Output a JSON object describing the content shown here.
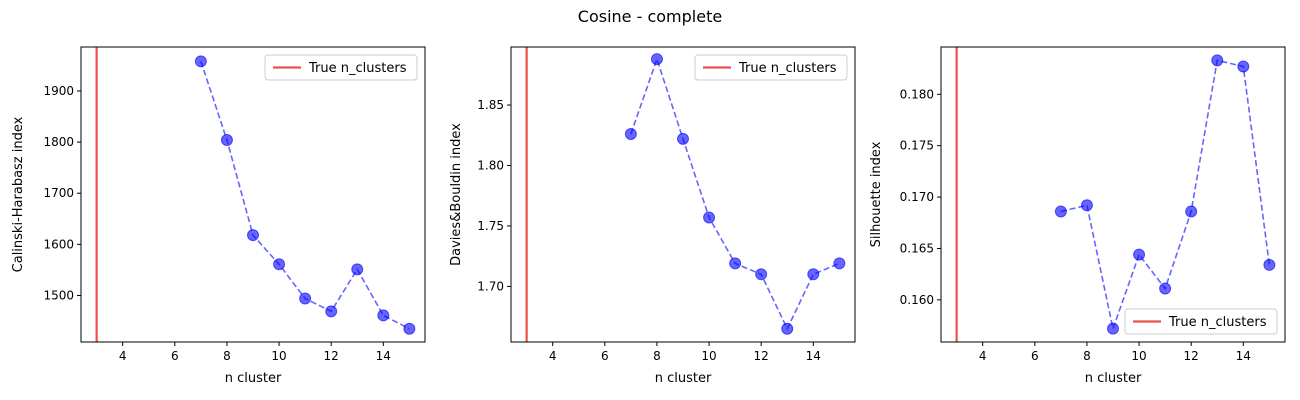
{
  "figure": {
    "title": "Cosine - complete"
  },
  "colors": {
    "series": "#0000ff",
    "reference_line": "#e8322f",
    "axes": "#000000",
    "legend_border": "#cccccc"
  },
  "chart_data": [
    {
      "type": "line",
      "xlabel": "n cluster",
      "ylabel": "Calinski-Harabasz index",
      "xlim": [
        2.4,
        15.6
      ],
      "ylim": [
        1409,
        1986
      ],
      "xticks": [
        4,
        6,
        8,
        10,
        12,
        14
      ],
      "yticks": [
        1500,
        1600,
        1700,
        1800,
        1900
      ],
      "grid": false,
      "legend_placement": "upper right",
      "reference_line": {
        "label": "True n_clusters",
        "x": 3
      },
      "series": [
        {
          "x": [
            7,
            8,
            9,
            10,
            11,
            12,
            13,
            14,
            15
          ],
          "y": [
            1958,
            1804,
            1618,
            1561,
            1494,
            1469,
            1551,
            1461,
            1435
          ]
        }
      ]
    },
    {
      "type": "line",
      "xlabel": "n cluster",
      "ylabel": "Davies&Bouldin index",
      "xlim": [
        2.4,
        15.6
      ],
      "ylim": [
        1.654,
        1.898
      ],
      "xticks": [
        4,
        6,
        8,
        10,
        12,
        14
      ],
      "yticks": [
        1.7,
        1.75,
        1.8,
        1.85
      ],
      "ytick_labels": [
        "1.70",
        "1.75",
        "1.80",
        "1.85"
      ],
      "grid": false,
      "legend_placement": "upper right",
      "reference_line": {
        "label": "True n_clusters",
        "x": 3
      },
      "series": [
        {
          "x": [
            7,
            8,
            9,
            10,
            11,
            12,
            13,
            14,
            15
          ],
          "y": [
            1.826,
            1.888,
            1.822,
            1.757,
            1.719,
            1.71,
            1.665,
            1.71,
            1.719
          ]
        }
      ]
    },
    {
      "type": "line",
      "xlabel": "n cluster",
      "ylabel": "Silhouette index",
      "xlim": [
        2.4,
        15.6
      ],
      "ylim": [
        0.1559,
        0.1846
      ],
      "xticks": [
        4,
        6,
        8,
        10,
        12,
        14
      ],
      "yticks": [
        0.16,
        0.165,
        0.17,
        0.175,
        0.18
      ],
      "ytick_labels": [
        "0.160",
        "0.165",
        "0.170",
        "0.175",
        "0.180"
      ],
      "grid": false,
      "legend_placement": "lower right",
      "reference_line": {
        "label": "True n_clusters",
        "x": 3
      },
      "series": [
        {
          "x": [
            7,
            8,
            9,
            10,
            11,
            12,
            13,
            14,
            15
          ],
          "y": [
            0.1686,
            0.1692,
            0.1572,
            0.1644,
            0.1611,
            0.1686,
            0.1833,
            0.1827,
            0.1634
          ]
        }
      ]
    }
  ]
}
